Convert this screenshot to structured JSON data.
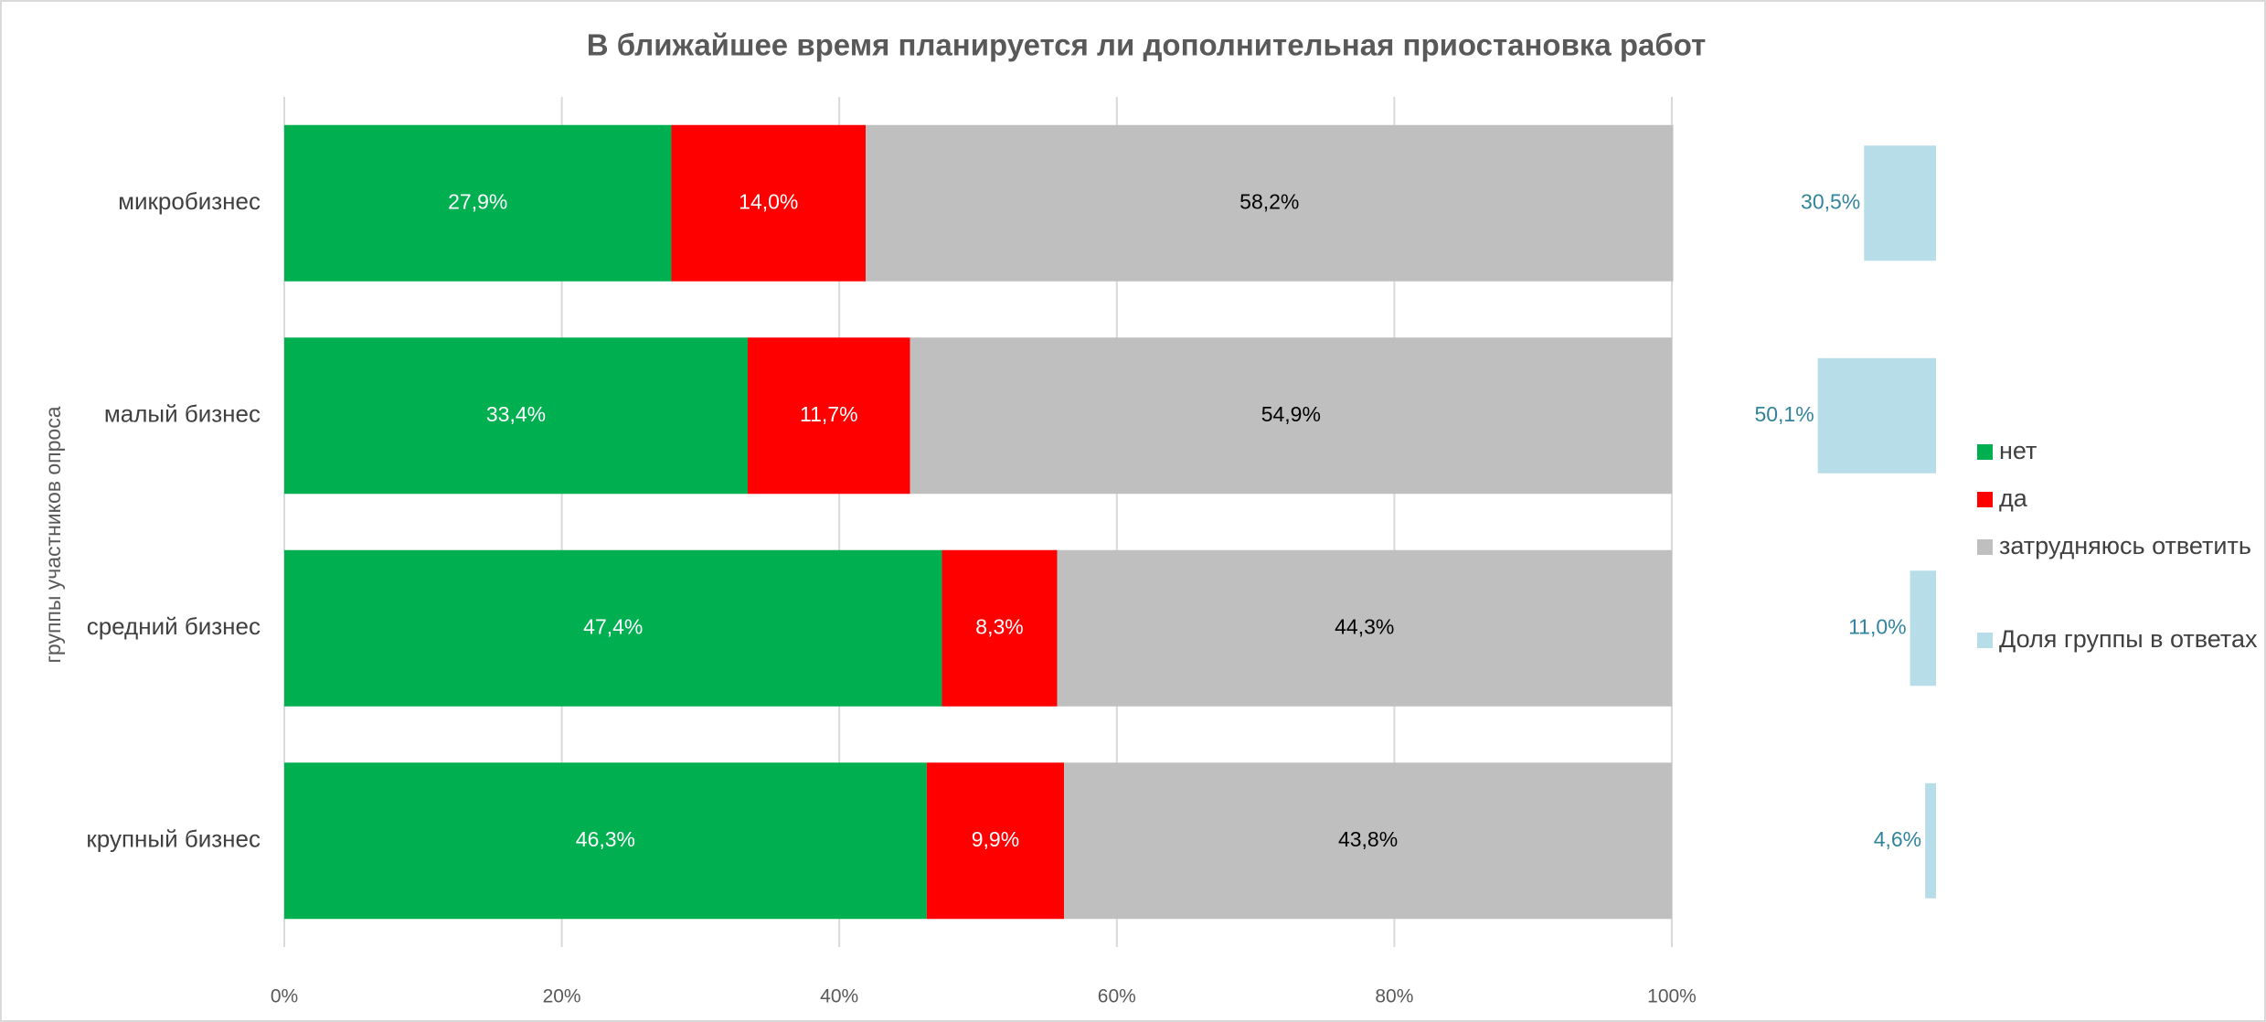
{
  "chart_data": {
    "type": "bar",
    "orientation": "horizontal",
    "stacked": true,
    "title": "В ближайшее время планируется ли дополнительная приостановка работ",
    "y_label": "группы участников опроса",
    "categories": [
      "микробизнес",
      "малый бизнес",
      "средний бизнес",
      "крупный бизнес"
    ],
    "series": [
      {
        "name": "нет",
        "color": "#00b050",
        "label_color": "#ffffff",
        "values": [
          27.9,
          33.4,
          47.4,
          46.3
        ],
        "value_labels": [
          "27,9%",
          "33,4%",
          "47,4%",
          "46,3%"
        ]
      },
      {
        "name": "да",
        "color": "#ff0000",
        "label_color": "#ffffff",
        "values": [
          14.0,
          11.7,
          8.3,
          9.9
        ],
        "value_labels": [
          "14,0%",
          "11,7%",
          "8,3%",
          "9,9%"
        ]
      },
      {
        "name": "затрудняюсь ответить",
        "color": "#bfbfbf",
        "label_color": "#000000",
        "values": [
          58.2,
          54.9,
          44.3,
          43.8
        ],
        "value_labels": [
          "58,2%",
          "54,9%",
          "44,3%",
          "43,8%"
        ]
      },
      {
        "name": "Доля группы в ответах",
        "color": "#b7dee8",
        "label_color": "#31849b",
        "axis": "x2",
        "values": [
          30.5,
          50.1,
          11.0,
          4.6
        ],
        "value_labels": [
          "30,5%",
          "50,1%",
          "11,0%",
          "4,6%"
        ]
      }
    ],
    "xlim": [
      0,
      100
    ],
    "xticks": [
      {
        "value": 0,
        "label": "0%"
      },
      {
        "value": 20,
        "label": "20%"
      },
      {
        "value": 40,
        "label": "40%"
      },
      {
        "value": 60,
        "label": "60%"
      },
      {
        "value": 80,
        "label": "80%"
      },
      {
        "value": 100,
        "label": "100%"
      }
    ],
    "x2lim": [
      0,
      700
    ],
    "x2reversed": true,
    "grid": true,
    "legend": "right"
  }
}
